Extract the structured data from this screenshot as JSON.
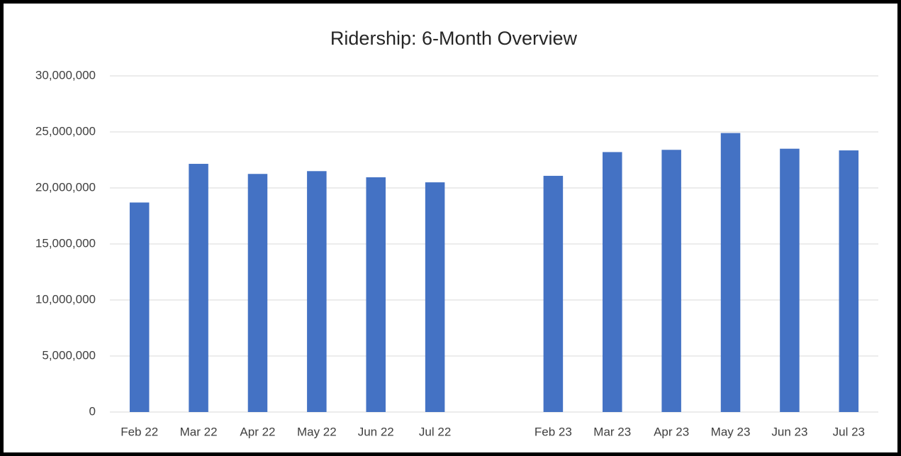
{
  "chart_data": {
    "type": "bar",
    "title": "Ridership: 6-Month Overview",
    "categories": [
      "Feb 22",
      "Mar 22",
      "Apr 22",
      "May 22",
      "Jun 22",
      "Jul 22",
      null,
      "Feb 23",
      "Mar 23",
      "Apr 23",
      "May 23",
      "Jun 23",
      "Jul 23"
    ],
    "values": [
      18700000,
      22150000,
      21250000,
      21500000,
      20950000,
      20500000,
      null,
      21080000,
      23200000,
      23400000,
      24900000,
      23500000,
      23350000
    ],
    "color": "#4472c4",
    "ylim": [
      0,
      30000000
    ],
    "yticks": [
      0,
      {
        "value": 5000000,
        "label": "5,000,000"
      },
      {
        "value": 10000000,
        "label": "10,000,000"
      },
      {
        "value": 15000000,
        "label": "15,000,000"
      },
      {
        "value": 20000000,
        "label": "20,000,000"
      },
      {
        "value": 25000000,
        "label": "25,000,000"
      },
      {
        "value": 30000000,
        "label": "30,000,000"
      }
    ],
    "grid": true
  }
}
